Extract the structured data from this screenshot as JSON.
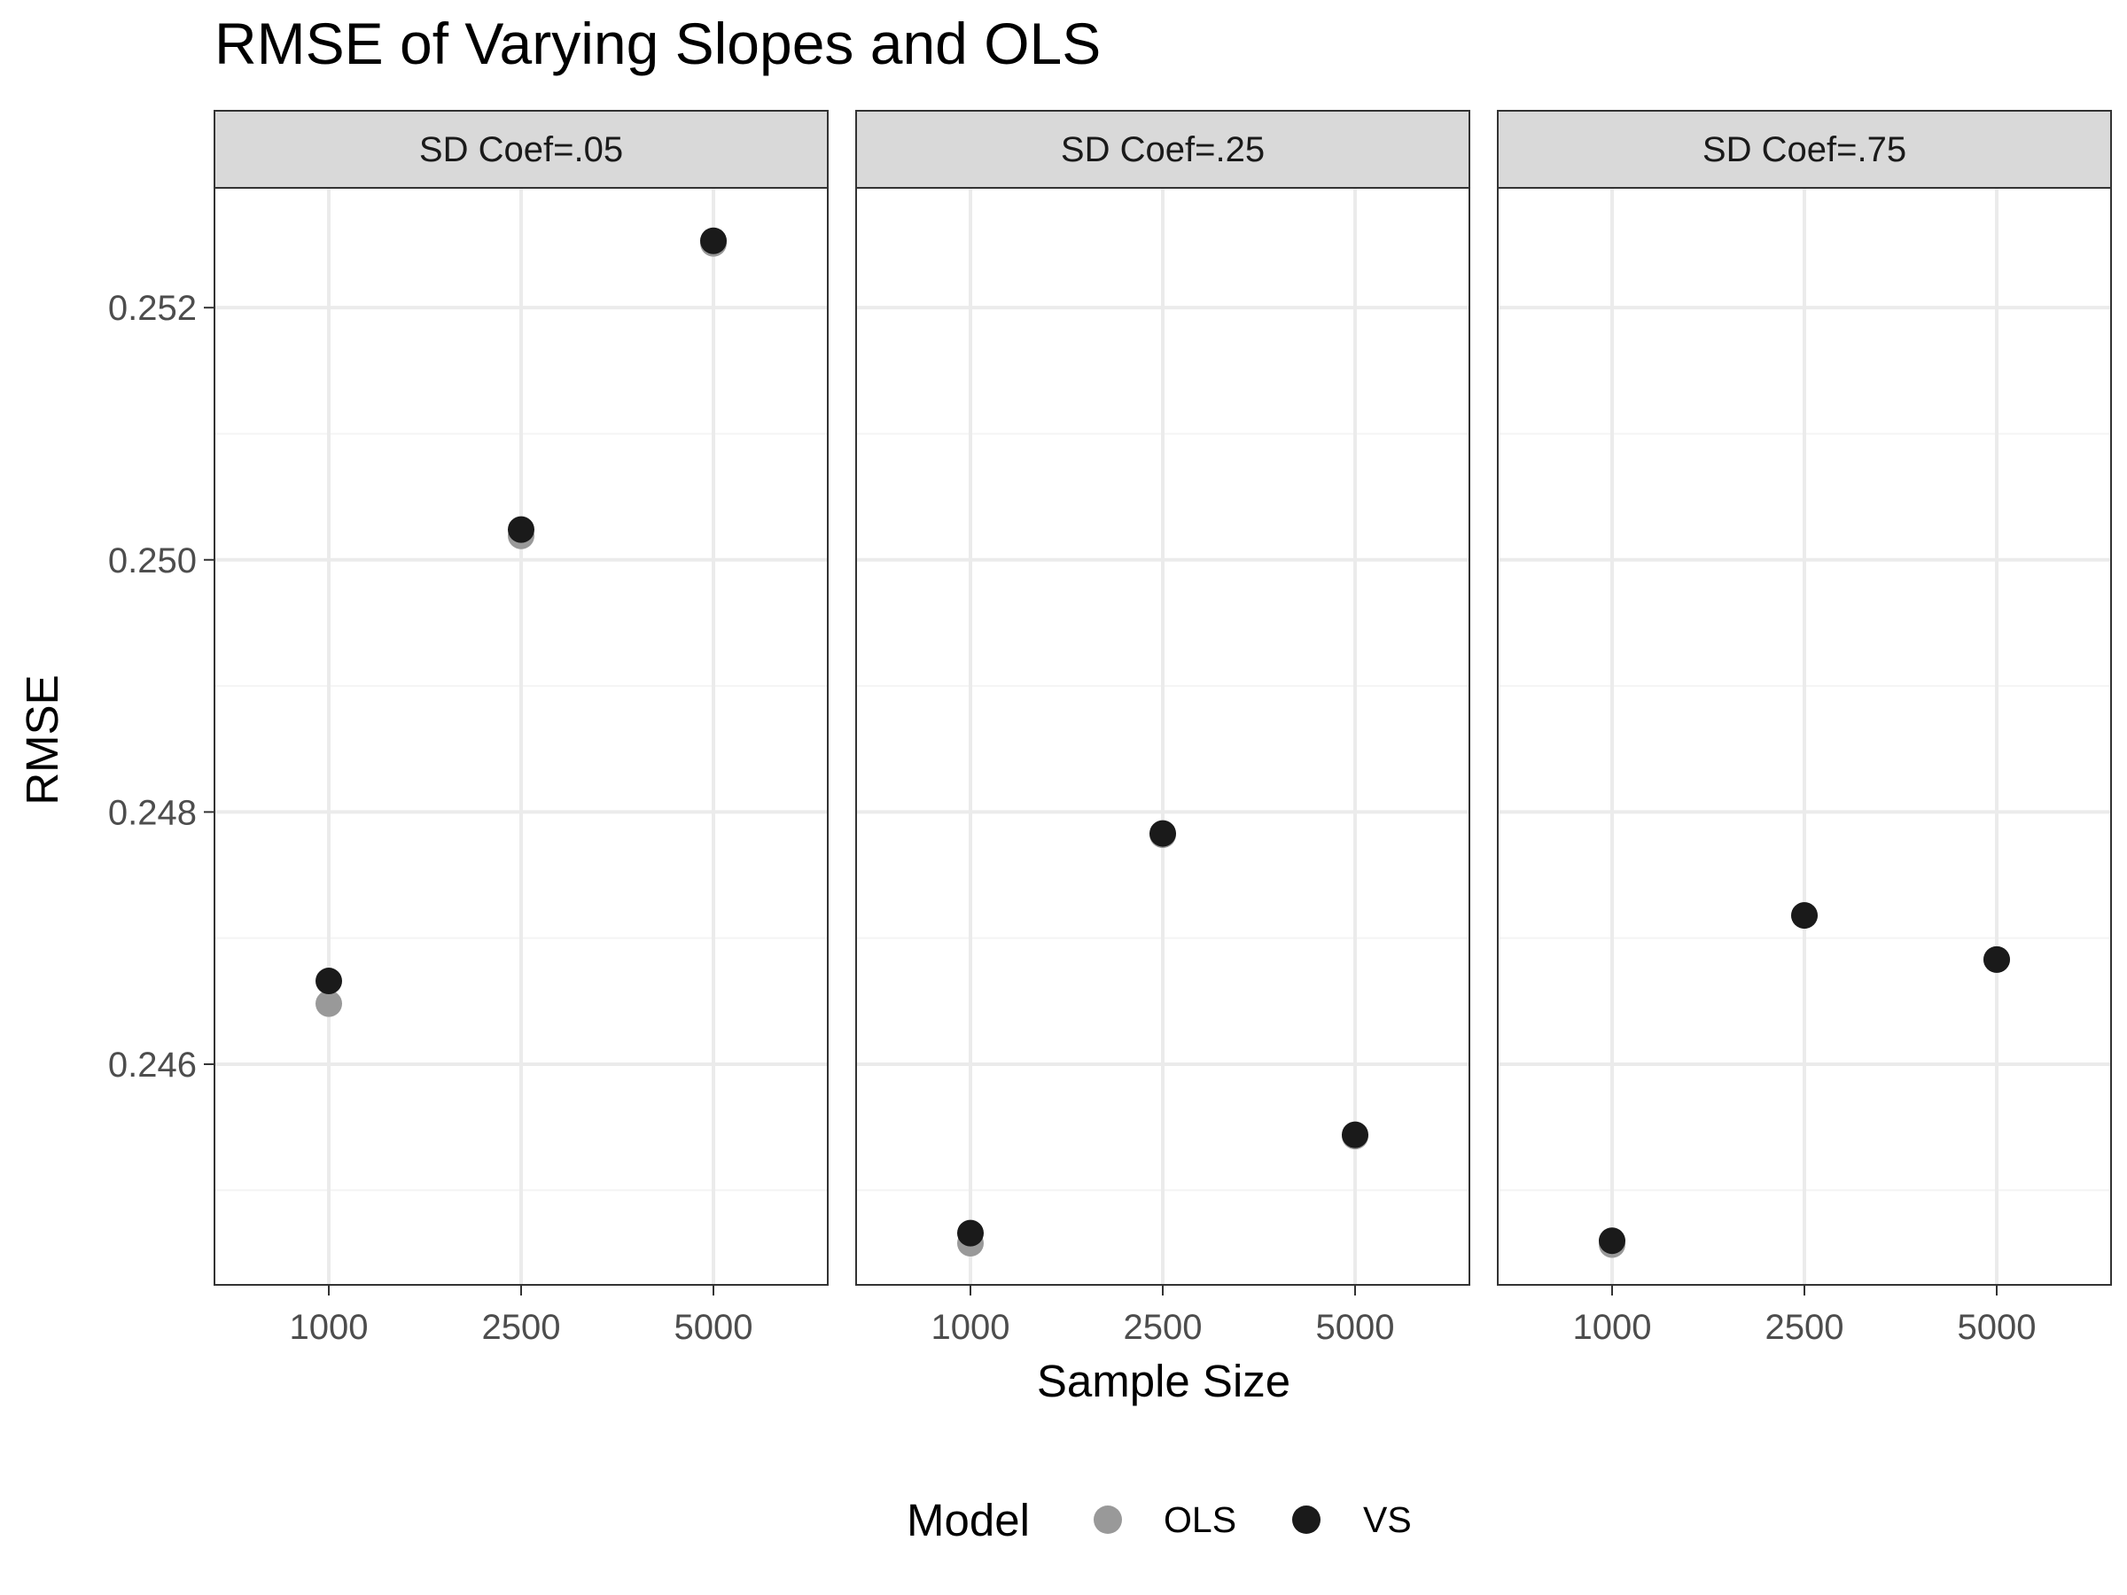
{
  "chart_data": {
    "type": "scatter",
    "title": "RMSE of Varying Slopes and OLS",
    "xlabel": "Sample Size",
    "ylabel": "RMSE",
    "x_categories": [
      "1000",
      "2500",
      "5000"
    ],
    "y_ticks": [
      0.246,
      0.248,
      0.25,
      0.252
    ],
    "y_tick_labels": [
      "0.246",
      "0.248",
      "0.250",
      "0.252"
    ],
    "ylim": [
      0.24425,
      0.25295
    ],
    "grid": true,
    "legend": {
      "title": "Model",
      "position": "bottom",
      "entries": [
        {
          "name": "OLS",
          "color": "#999999"
        },
        {
          "name": "VS",
          "color": "#1a1a1a"
        }
      ]
    },
    "panels": [
      {
        "label": "SD Coef=.05",
        "series": [
          {
            "name": "OLS",
            "values": [
              0.24648,
              0.25019,
              0.25251
            ]
          },
          {
            "name": "VS",
            "values": [
              0.24666,
              0.25024,
              0.25253
            ]
          }
        ]
      },
      {
        "label": "SD Coef=.25",
        "series": [
          {
            "name": "OLS",
            "values": [
              0.24458,
              0.24782,
              0.24543
            ]
          },
          {
            "name": "VS",
            "values": [
              0.24466,
              0.24783,
              0.24544
            ]
          }
        ]
      },
      {
        "label": "SD Coef=.75",
        "series": [
          {
            "name": "OLS",
            "values": [
              0.24457,
              0.24718,
              0.24683
            ]
          },
          {
            "name": "VS",
            "values": [
              0.2446,
              0.24718,
              0.24683
            ]
          }
        ]
      }
    ]
  },
  "colors": {
    "strip_bg": "#d9d9d9",
    "grid_major": "#ebebeb",
    "grid_minor": "#f4f4f4",
    "axis_text": "#4d4d4d",
    "frame": "#333333"
  }
}
